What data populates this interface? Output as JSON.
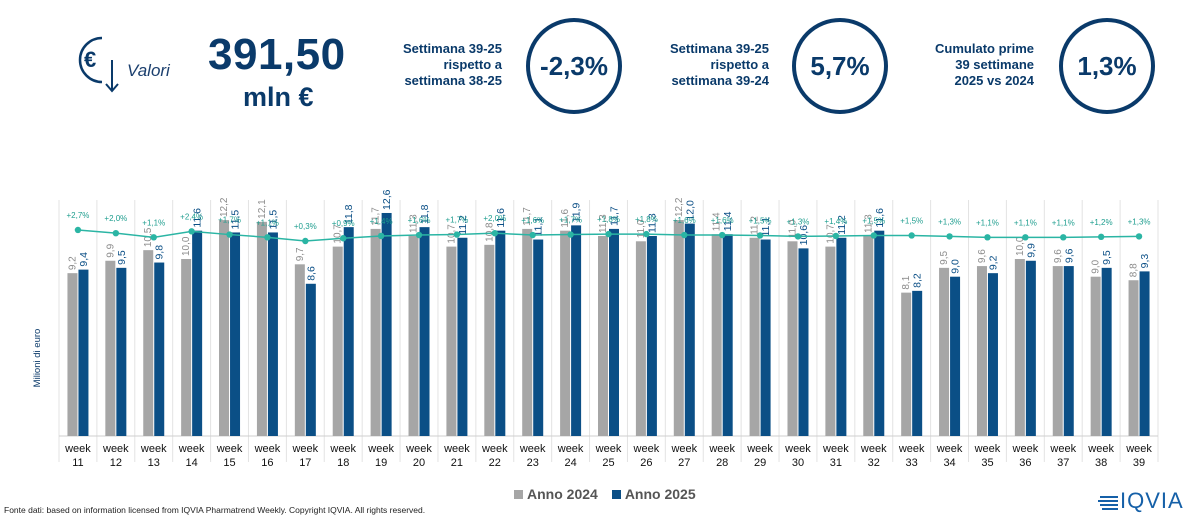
{
  "header": {
    "icon": "euro-arrow-icon",
    "valori_label": "Valori",
    "total_value": "391,50",
    "total_unit": "mln €"
  },
  "kpis": [
    {
      "label_lines": [
        "Settimana 39-25",
        "rispetto a",
        "settimana 38-25"
      ],
      "value": "-2,3%"
    },
    {
      "label_lines": [
        "Settimana 39-25",
        "rispetto a",
        "settimana 39-24"
      ],
      "value": "5,7%"
    },
    {
      "label_lines": [
        "Cumulato prime",
        "39 settimane",
        "2025 vs 2024"
      ],
      "value": "1,3%"
    }
  ],
  "chart_data": {
    "type": "bar",
    "ylabel": "Milioni di euro",
    "categories": [
      "week 11",
      "week 12",
      "week 13",
      "week 14",
      "week 15",
      "week 16",
      "week 17",
      "week 18",
      "week 19",
      "week 20",
      "week 21",
      "week 22",
      "week 23",
      "week 24",
      "week 25",
      "week 26",
      "week 27",
      "week 28",
      "week 29",
      "week 30",
      "week 31",
      "week 32",
      "week 33",
      "week 34",
      "week 35",
      "week 36",
      "week 37",
      "week 38",
      "week 39"
    ],
    "series": [
      {
        "name": "Anno 2024",
        "color": "#a6a6a6",
        "values": [
          9.2,
          9.9,
          10.5,
          10.0,
          12.2,
          12.1,
          9.7,
          10.7,
          11.7,
          11.3,
          10.7,
          10.8,
          11.7,
          11.6,
          11.3,
          11.0,
          12.2,
          11.4,
          11.2,
          11.0,
          10.7,
          11.3,
          8.1,
          9.5,
          9.6,
          10.0,
          9.6,
          9.0,
          8.8
        ],
        "labels": [
          "9,2",
          "9,9",
          "10,5",
          "10,0",
          "12,2",
          "12,1",
          "9,7",
          "10,7",
          "11,7",
          "11,3",
          "10,7",
          "10,8",
          "11,7",
          "11,6",
          "11,3",
          "11,0",
          "12,2",
          "11,4",
          "11,2",
          "11,0",
          "10,7",
          "11,3",
          "8,1",
          "9,5",
          "9,6",
          "10,0",
          "9,6",
          "9,0",
          "8,8"
        ]
      },
      {
        "name": "Anno 2025",
        "color": "#0b4f86",
        "values": [
          9.4,
          9.5,
          9.8,
          11.6,
          11.5,
          11.5,
          8.6,
          11.8,
          12.6,
          11.8,
          11.2,
          11.6,
          11.1,
          11.9,
          11.7,
          11.3,
          12.0,
          11.4,
          11.1,
          10.6,
          11.2,
          11.6,
          8.2,
          9.0,
          9.2,
          9.9,
          9.6,
          9.5,
          9.3
        ],
        "labels": [
          "9,4",
          "9,5",
          "9,8",
          "11,6",
          "11,5",
          "11,5",
          "8,6",
          "11,8",
          "12,6",
          "11,8",
          "11,2",
          "11,6",
          "11,1",
          "11,9",
          "11,7",
          "11,3",
          "12,0",
          "11,4",
          "11,1",
          "10,6",
          "11,2",
          "11,6",
          "8,2",
          "9,0",
          "9,2",
          "9,9",
          "9,6",
          "9,5",
          "9,3"
        ]
      }
    ],
    "growth_line": {
      "color": "#2bb5a4",
      "values": [
        2.7,
        2.0,
        1.1,
        2.4,
        1.7,
        1.1,
        0.3,
        0.9,
        1.4,
        1.6,
        1.7,
        2.0,
        1.6,
        1.7,
        1.8,
        1.8,
        1.6,
        1.6,
        1.5,
        1.3,
        1.4,
        1.5,
        1.5,
        1.3,
        1.1,
        1.1,
        1.1,
        1.2,
        1.3
      ],
      "labels": [
        "+2,7%",
        "+2,0%",
        "+1,1%",
        "+2,4%",
        "+1,7%",
        "+1,1%",
        "+0,3%",
        "+0,9%",
        "+1,4%",
        "+1,6%",
        "+1,7%",
        "+2,0%",
        "+1,6%",
        "+1,7%",
        "+1,8%",
        "+1,8%",
        "+1,6%",
        "+1,6%",
        "+1,5%",
        "+1,3%",
        "+1,4%",
        "+1,5%",
        "+1,5%",
        "+1,3%",
        "+1,1%",
        "+1,1%",
        "+1,1%",
        "+1,2%",
        "+1,3%"
      ]
    },
    "ylim": [
      0,
      14
    ],
    "legend": "bottom-center"
  },
  "legend": {
    "items": [
      "Anno 2024",
      "Anno 2025"
    ]
  },
  "footer": {
    "source": "Fonte dati: based on information licensed from IQVIA Pharmatrend Weekly. Copyright IQVIA. All rights reserved.",
    "logo_text": "IQVIA"
  }
}
